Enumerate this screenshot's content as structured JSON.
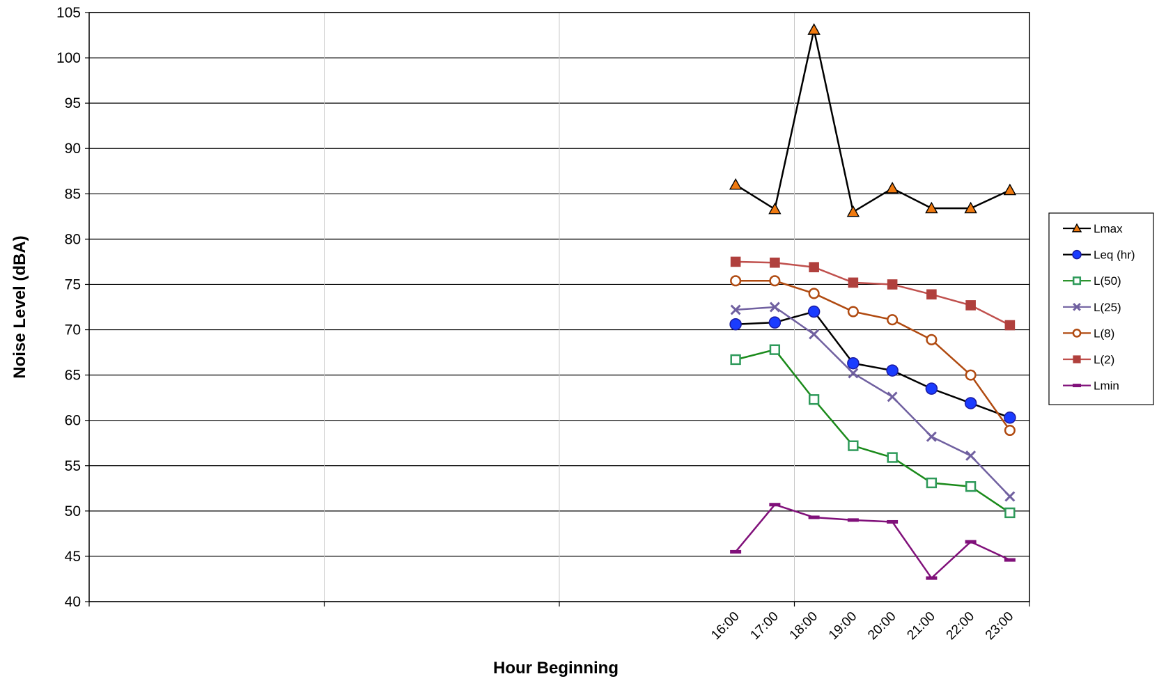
{
  "chart_data": {
    "type": "line",
    "xlabel": "Hour Beginning",
    "ylabel": "Noise Level (dBA)",
    "ylim": [
      40,
      105
    ],
    "y_tick_step": 5,
    "x_category_slots": 24,
    "x_major_gridline_every": 6,
    "categories": [
      "16:00",
      "17:00",
      "18:00",
      "19:00",
      "20:00",
      "21:00",
      "22:00",
      "23:00"
    ],
    "grid": true,
    "legend_position": "right",
    "series": [
      {
        "name": "Lmax",
        "marker": "triangle",
        "line_color": "#000000",
        "marker_fill": "#f07a10",
        "marker_stroke": "#000000",
        "values": [
          86.0,
          83.3,
          103.1,
          83.0,
          85.6,
          83.4,
          83.4,
          85.4
        ]
      },
      {
        "name": "Leq (hr)",
        "marker": "circle-filled",
        "line_color": "#000000",
        "marker_fill": "#1a3cff",
        "marker_stroke": "#1a1aa0",
        "values": [
          70.6,
          70.8,
          72.0,
          66.3,
          65.5,
          63.5,
          61.9,
          60.3
        ]
      },
      {
        "name": "L(50)",
        "marker": "square-open",
        "line_color": "#1a8a1a",
        "marker_fill": "#ffffff",
        "marker_stroke": "#2e9a5a",
        "values": [
          66.7,
          67.8,
          62.3,
          57.2,
          55.9,
          53.1,
          52.7,
          49.8
        ]
      },
      {
        "name": "L(25)",
        "marker": "x",
        "line_color": "#7060a0",
        "marker_fill": "none",
        "marker_stroke": "#7060a0",
        "values": [
          72.2,
          72.5,
          69.5,
          65.2,
          62.6,
          58.2,
          56.1,
          51.6
        ]
      },
      {
        "name": "L(8)",
        "marker": "circle-open",
        "line_color": "#b04a10",
        "marker_fill": "#ffffff",
        "marker_stroke": "#b04a10",
        "values": [
          75.4,
          75.4,
          74.0,
          72.0,
          71.1,
          68.9,
          65.0,
          58.9
        ]
      },
      {
        "name": "L(2)",
        "marker": "square-filled",
        "line_color": "#c0504d",
        "marker_fill": "#b0403d",
        "marker_stroke": "#b0403d",
        "values": [
          77.5,
          77.4,
          76.9,
          75.2,
          75.0,
          73.9,
          72.7,
          70.5
        ]
      },
      {
        "name": "Lmin",
        "marker": "dash",
        "line_color": "#80107a",
        "marker_fill": "#80107a",
        "marker_stroke": "#80107a",
        "values": [
          45.5,
          50.7,
          49.3,
          49.0,
          48.8,
          42.6,
          46.6,
          44.6
        ]
      }
    ]
  }
}
